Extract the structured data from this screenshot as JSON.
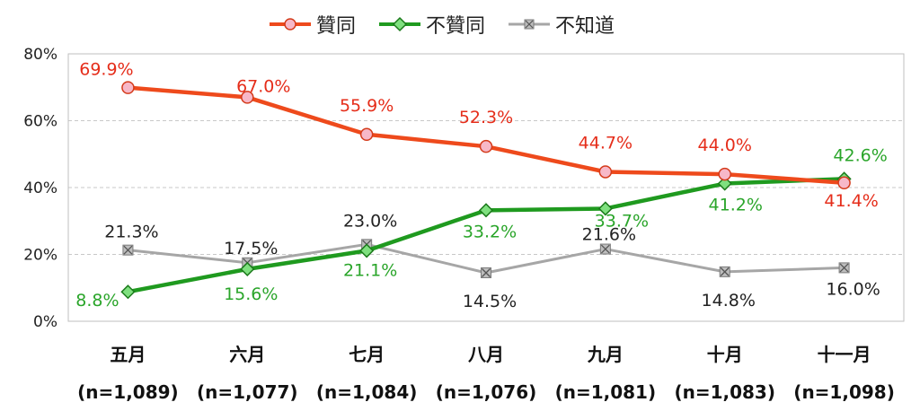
{
  "chart_data": {
    "type": "line",
    "categories": [
      "五月",
      "六月",
      "七月",
      "八月",
      "九月",
      "十月",
      "十一月"
    ],
    "category_sublabels": [
      "(n=1,089)",
      "(n=1,077)",
      "(n=1,084)",
      "(n=1,076)",
      "(n=1,081)",
      "(n=1,083)",
      "(n=1,098)"
    ],
    "ylim": [
      0,
      80
    ],
    "yticks": [
      "0%",
      "20%",
      "40%",
      "60%",
      "80%"
    ],
    "grid": true,
    "legend_position": "top",
    "series": [
      {
        "name": "贊同",
        "color": "#ee4a1c",
        "label_color": "#e52d1a",
        "marker": "circle",
        "values": [
          69.9,
          67.0,
          55.9,
          52.3,
          44.7,
          44.0,
          41.4
        ],
        "labels": [
          "69.9%",
          "67.0%",
          "55.9%",
          "52.3%",
          "44.7%",
          "44.0%",
          "41.4%"
        ]
      },
      {
        "name": "不贊同",
        "color": "#1f9a1f",
        "label_color": "#2aa52a",
        "marker": "diamond",
        "values": [
          8.8,
          15.6,
          21.1,
          33.2,
          33.7,
          41.2,
          42.6
        ],
        "labels": [
          "8.8%",
          "15.6%",
          "21.1%",
          "33.2%",
          "33.7%",
          "41.2%",
          "42.6%"
        ]
      },
      {
        "name": "不知道",
        "color": "#a6a6a6",
        "label_color": "#222222",
        "marker": "x-square",
        "values": [
          21.3,
          17.5,
          23.0,
          14.5,
          21.6,
          14.8,
          16.0
        ],
        "labels": [
          "21.3%",
          "17.5%",
          "23.0%",
          "14.5%",
          "21.6%",
          "14.8%",
          "16.0%"
        ]
      }
    ]
  }
}
